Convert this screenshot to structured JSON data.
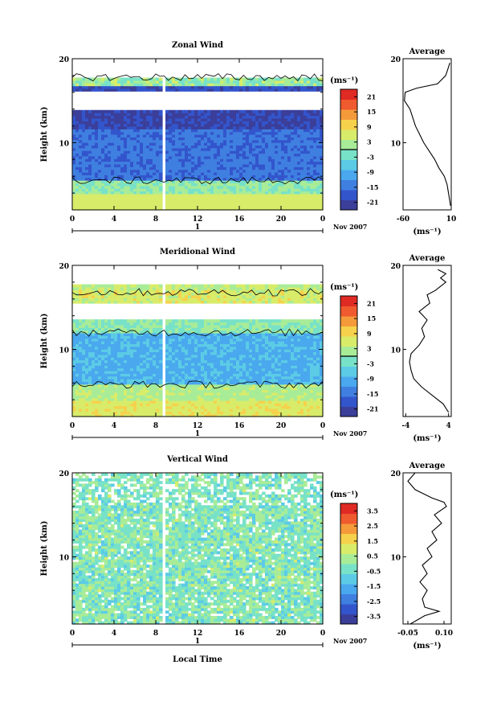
{
  "figure": {
    "xlabel": "Local Time",
    "date_label": "Nov 2007",
    "day_label": "1",
    "unit_label": "(ms⁻¹)",
    "average_title": "Average",
    "ylabel": "Height (km)"
  },
  "colors": [
    "#3b3f9a",
    "#3355cc",
    "#3f7fe0",
    "#4aa8ee",
    "#5ccbe6",
    "#78e2c8",
    "#a8ec98",
    "#d8ec6a",
    "#f6d24c",
    "#f59a3a",
    "#ef5a2e",
    "#e02a24"
  ],
  "chart_data": [
    {
      "type": "heatmap",
      "title": "Zonal Wind",
      "x_ticks": [
        "0",
        "4",
        "8",
        "12",
        "16",
        "20",
        "0"
      ],
      "xlim": [
        0,
        24
      ],
      "y_ticks": [
        "20",
        "10"
      ],
      "ylim": [
        2,
        20
      ],
      "colorbar_ticks": [
        "21",
        "15",
        "9",
        "3",
        "-3",
        "-9",
        "-15",
        "-21"
      ],
      "colorbar_range": [
        -24,
        24
      ],
      "average": {
        "x_ticks": [
          "-60",
          "10"
        ],
        "xlim": [
          -60,
          10
        ],
        "points": [
          [
            9,
            2.5
          ],
          [
            8,
            3
          ],
          [
            6,
            4
          ],
          [
            4,
            5
          ],
          [
            0,
            6
          ],
          [
            -8,
            7
          ],
          [
            -14,
            8
          ],
          [
            -22,
            9
          ],
          [
            -30,
            10
          ],
          [
            -36,
            11
          ],
          [
            -42,
            12
          ],
          [
            -46,
            13
          ],
          [
            -50,
            14
          ],
          [
            -58,
            15
          ],
          [
            -57,
            16
          ],
          [
            -40,
            16.5
          ],
          [
            -10,
            17
          ],
          [
            2,
            18
          ],
          [
            6,
            19
          ],
          [
            8,
            19.5
          ]
        ]
      }
    },
    {
      "type": "heatmap",
      "title": "Meridional Wind",
      "x_ticks": [
        "0",
        "4",
        "8",
        "12",
        "16",
        "20",
        "0"
      ],
      "xlim": [
        0,
        24
      ],
      "y_ticks": [
        "20",
        "10"
      ],
      "ylim": [
        2,
        20
      ],
      "colorbar_ticks": [
        "21",
        "15",
        "9",
        "3",
        "-3",
        "-9",
        "-15",
        "-21"
      ],
      "colorbar_range": [
        -24,
        24
      ],
      "average": {
        "x_ticks": [
          "-4",
          "4"
        ],
        "xlim": [
          -4.5,
          4.5
        ],
        "points": [
          [
            4,
            2.5
          ],
          [
            3,
            3.5
          ],
          [
            1,
            4.5
          ],
          [
            -1,
            5.5
          ],
          [
            -2.5,
            6.5
          ],
          [
            -3,
            7.5
          ],
          [
            -3.3,
            8.5
          ],
          [
            -3,
            9.5
          ],
          [
            -1.5,
            10.5
          ],
          [
            -0.5,
            11.5
          ],
          [
            -1,
            12.5
          ],
          [
            0,
            13.5
          ],
          [
            -1.5,
            14.5
          ],
          [
            0.5,
            15.5
          ],
          [
            0,
            16.5
          ],
          [
            1.5,
            17
          ],
          [
            2.5,
            17.5
          ],
          [
            3.5,
            18
          ],
          [
            2.5,
            18.5
          ],
          [
            3.5,
            19
          ],
          [
            2,
            19.5
          ]
        ]
      }
    },
    {
      "type": "heatmap",
      "title": "Vertical Wind",
      "x_ticks": [
        "0",
        "4",
        "8",
        "12",
        "16",
        "20",
        "0"
      ],
      "xlim": [
        0,
        24
      ],
      "y_ticks": [
        "20",
        "10"
      ],
      "ylim": [
        2,
        20
      ],
      "colorbar_ticks": [
        "3.5",
        "2.5",
        "1.5",
        "0.5",
        "-0.5",
        "-1.5",
        "-2.5",
        "-3.5"
      ],
      "colorbar_range": [
        -4,
        4
      ],
      "average": {
        "x_ticks": [
          "-0.05",
          "0.10"
        ],
        "xlim": [
          -0.07,
          0.13
        ],
        "points": [
          [
            -0.04,
            2
          ],
          [
            0.02,
            3
          ],
          [
            0.08,
            3.5
          ],
          [
            0.02,
            4
          ],
          [
            0.01,
            5
          ],
          [
            0.03,
            6
          ],
          [
            0.0,
            7
          ],
          [
            0.03,
            8
          ],
          [
            0.01,
            9
          ],
          [
            0.05,
            10
          ],
          [
            0.03,
            11
          ],
          [
            0.07,
            12
          ],
          [
            0.05,
            13
          ],
          [
            0.09,
            14
          ],
          [
            0.06,
            15
          ],
          [
            0.11,
            16
          ],
          [
            0.1,
            16.5
          ],
          [
            0.05,
            17
          ],
          [
            -0.02,
            18
          ],
          [
            -0.05,
            19
          ],
          [
            -0.02,
            20
          ]
        ]
      }
    }
  ]
}
